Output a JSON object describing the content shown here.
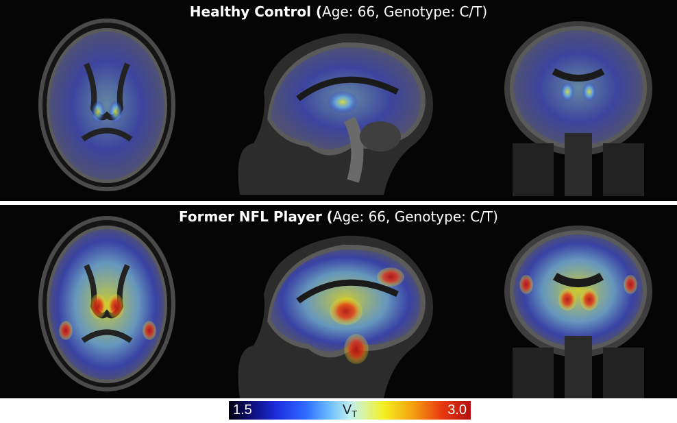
{
  "panels": [
    {
      "title_bold": "Healthy Control (",
      "title_normal": "Age: 66, Genotype: C/T)",
      "uptake": "low"
    },
    {
      "title_bold": "Former NFL Player (",
      "title_normal": "Age: 66, Genotype: C/T)",
      "uptake": "high"
    }
  ],
  "colorbar": {
    "min_label": "1.5",
    "max_label": "3.0",
    "center_label": "V",
    "center_sub": "T",
    "min": 1.5,
    "max": 3.0,
    "colors": [
      "#000010",
      "#1e2de0",
      "#6fc0ff",
      "#f4f020",
      "#e83a10",
      "#b40f0f"
    ]
  },
  "views": [
    "axial",
    "sagittal",
    "coronal"
  ]
}
